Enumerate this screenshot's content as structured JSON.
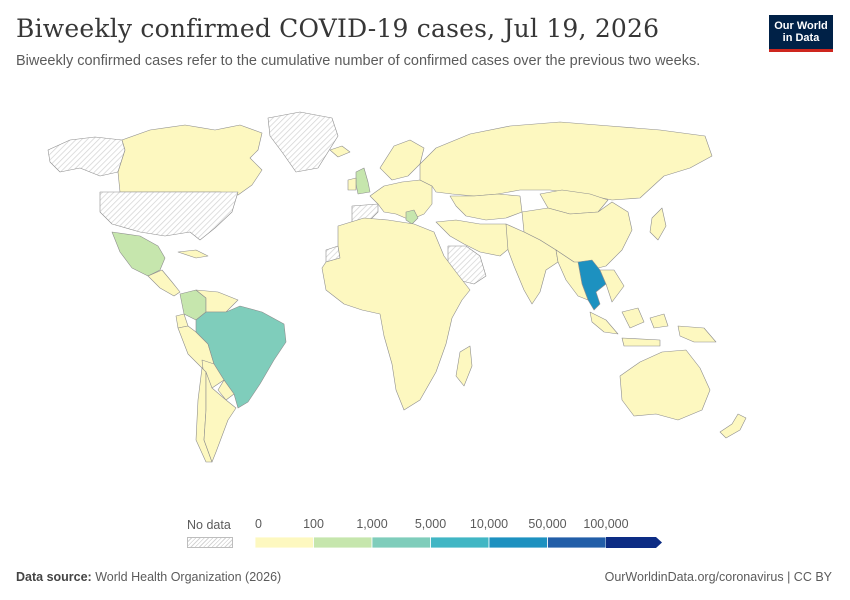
{
  "header": {
    "title": "Biweekly confirmed COVID-19 cases, Jul 19, 2026",
    "subtitle": "Biweekly confirmed cases refer to the cumulative number of confirmed cases over the previous two weeks."
  },
  "logo": {
    "line1": "Our World",
    "line2": "in Data"
  },
  "colors": {
    "no_data_hatch": "#d4d4d4",
    "border": "#8e8e8e",
    "bins": [
      "#fdf8c0",
      "#c6e6ad",
      "#7fcdbb",
      "#41b6c4",
      "#1d91c0",
      "#225ea8",
      "#0c2c84"
    ]
  },
  "legend": {
    "no_data_label": "No data",
    "ticks": [
      "0",
      "100",
      "1,000",
      "5,000",
      "10,000",
      "50,000",
      "100,000"
    ]
  },
  "map_data": {
    "type": "choropleth",
    "metric": "Biweekly confirmed COVID-19 cases",
    "date": "Jul 19, 2026",
    "regions": [
      {
        "name": "Canada",
        "bin": 0
      },
      {
        "name": "Alaska",
        "bin": -1
      },
      {
        "name": "United States",
        "bin": -1
      },
      {
        "name": "Greenland",
        "bin": -1
      },
      {
        "name": "Mexico",
        "bin": 1
      },
      {
        "name": "Central America",
        "bin": 0
      },
      {
        "name": "Cuba",
        "bin": 0
      },
      {
        "name": "Colombia",
        "bin": 1
      },
      {
        "name": "Venezuela",
        "bin": 0
      },
      {
        "name": "Ecuador",
        "bin": 0
      },
      {
        "name": "Peru",
        "bin": 0
      },
      {
        "name": "Bolivia",
        "bin": 0
      },
      {
        "name": "Brazil",
        "bin": 2
      },
      {
        "name": "Paraguay",
        "bin": 0
      },
      {
        "name": "Chile",
        "bin": 0
      },
      {
        "name": "Argentina",
        "bin": 0
      },
      {
        "name": "United Kingdom",
        "bin": 1
      },
      {
        "name": "Ireland",
        "bin": 0
      },
      {
        "name": "Iceland",
        "bin": 0
      },
      {
        "name": "Scandinavia",
        "bin": 0
      },
      {
        "name": "Europe",
        "bin": 0
      },
      {
        "name": "Spain & Portugal",
        "bin": -1
      },
      {
        "name": "Greece",
        "bin": 1
      },
      {
        "name": "Africa",
        "bin": 0
      },
      {
        "name": "Western Sahara",
        "bin": -1
      },
      {
        "name": "Saudi Arabia",
        "bin": -1
      },
      {
        "name": "Madagascar",
        "bin": 0
      },
      {
        "name": "Middle East",
        "bin": 0
      },
      {
        "name": "Russia",
        "bin": 0
      },
      {
        "name": "Kazakhstan",
        "bin": 0
      },
      {
        "name": "China",
        "bin": 0
      },
      {
        "name": "Mongolia",
        "bin": 0
      },
      {
        "name": "India",
        "bin": 0
      },
      {
        "name": "Thailand",
        "bin": 4
      },
      {
        "name": "Southeast Asia",
        "bin": 0
      },
      {
        "name": "Indonesia",
        "bin": 0
      },
      {
        "name": "Japan",
        "bin": 0
      },
      {
        "name": "Papua New Guinea",
        "bin": 0
      },
      {
        "name": "Australia",
        "bin": 0
      },
      {
        "name": "New Zealand",
        "bin": 0
      }
    ]
  },
  "footer": {
    "source_label": "Data source:",
    "source_text": "World Health Organization (2026)",
    "url_text": "OurWorldinData.org/coronavirus | CC BY"
  }
}
